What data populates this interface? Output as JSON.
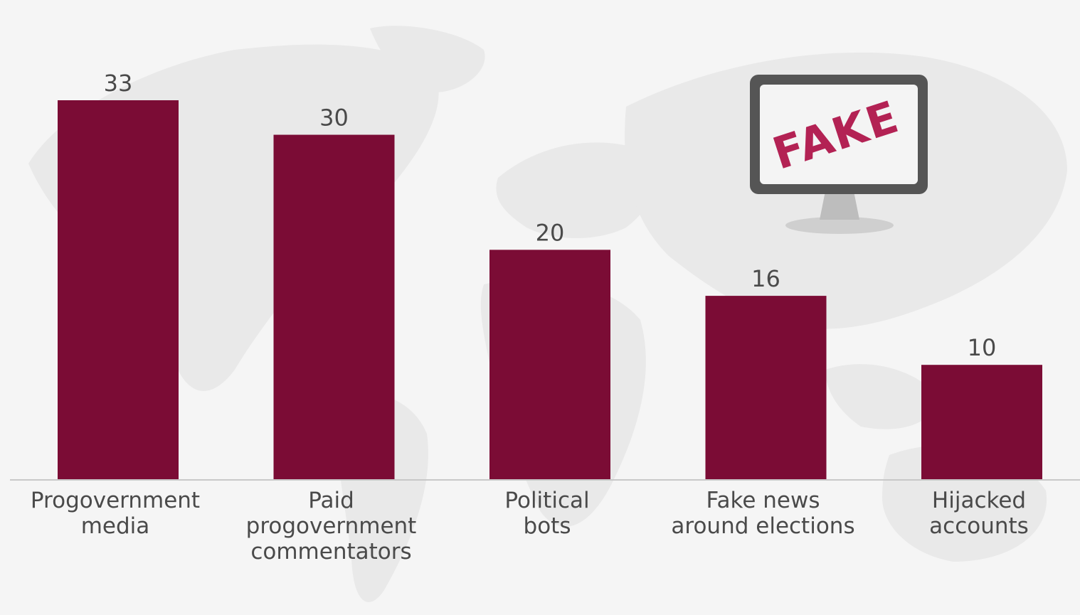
{
  "chart_data": {
    "type": "bar",
    "categories": [
      [
        "Progovernment",
        "media"
      ],
      [
        "Paid",
        "progovernment",
        "commentators"
      ],
      [
        "Political",
        "bots"
      ],
      [
        "Fake news",
        "around elections"
      ],
      [
        "Hijacked",
        "accounts"
      ]
    ],
    "values": [
      33,
      30,
      20,
      16,
      10
    ],
    "ylim": [
      0,
      33
    ],
    "grid": false,
    "bar_color": "#7b0c35"
  },
  "illustration": {
    "icon": "monitor-icon",
    "text": "FAKE"
  }
}
